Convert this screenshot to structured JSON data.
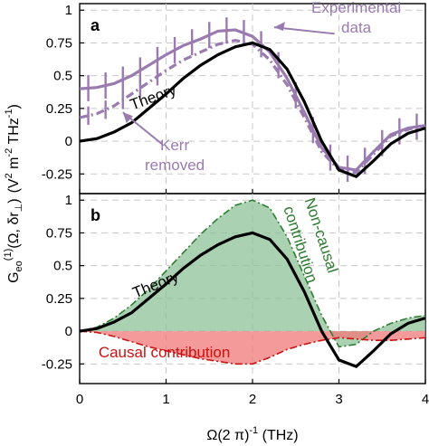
{
  "colors": {
    "experimental": "#9a7bb0",
    "theory": "#000000",
    "noncausal_line": "#2e7d32",
    "noncausal_fill": "#8fc19a",
    "causal_line": "#cc1111",
    "causal_fill": "#f07878",
    "grid": "#c8c8c8"
  },
  "chart_data": [
    {
      "panel": "a",
      "type": "line",
      "x_range": [
        0,
        4
      ],
      "ylim": [
        -0.4,
        1.05
      ],
      "yticks": [
        -0.25,
        0,
        0.25,
        0.5,
        0.75,
        1
      ],
      "ytick_labels": [
        "-0.25",
        "0",
        "0.25",
        "0.5",
        "0.75",
        "1"
      ],
      "series": [
        {
          "name": "Theory",
          "style": "solid-black",
          "x": [
            0,
            0.2,
            0.4,
            0.6,
            0.8,
            1.0,
            1.2,
            1.4,
            1.6,
            1.8,
            2.0,
            2.2,
            2.4,
            2.6,
            2.8,
            3.0,
            3.2,
            3.4,
            3.6,
            3.8,
            4.0
          ],
          "y": [
            0,
            0.02,
            0.07,
            0.14,
            0.25,
            0.36,
            0.48,
            0.58,
            0.66,
            0.72,
            0.75,
            0.7,
            0.55,
            0.3,
            0.0,
            -0.22,
            -0.27,
            -0.15,
            -0.02,
            0.06,
            0.1
          ]
        },
        {
          "name": "Experimental data",
          "style": "solid-purple-errorbars",
          "x": [
            0,
            0.2,
            0.4,
            0.6,
            0.8,
            1.0,
            1.2,
            1.4,
            1.6,
            1.8,
            2.0,
            2.2,
            2.4,
            2.6,
            2.8,
            3.0,
            3.2,
            3.4,
            3.6,
            3.8,
            4.0
          ],
          "y": [
            0.4,
            0.41,
            0.44,
            0.5,
            0.58,
            0.66,
            0.73,
            0.78,
            0.84,
            0.85,
            0.8,
            0.68,
            0.48,
            0.22,
            -0.05,
            -0.2,
            -0.22,
            -0.08,
            0.05,
            0.1,
            0.12
          ],
          "error_bar_x": [
            0.1,
            0.3,
            0.5,
            0.7,
            0.9,
            1.1,
            1.3,
            1.5,
            1.7,
            1.9,
            2.1,
            2.3,
            2.5,
            2.7,
            2.9,
            3.1,
            3.3,
            3.5,
            3.7,
            3.9
          ],
          "error_half_width": 0.1
        },
        {
          "name": "Kerr removed",
          "style": "dash-dot-purple-errorbars",
          "x": [
            0,
            0.2,
            0.4,
            0.6,
            0.8,
            1.0,
            1.2,
            1.4,
            1.6,
            1.8,
            2.0,
            2.2,
            2.4,
            2.6,
            2.8,
            3.0,
            3.2,
            3.4,
            3.6,
            3.8,
            4.0
          ],
          "y": [
            0.18,
            0.21,
            0.27,
            0.36,
            0.45,
            0.54,
            0.62,
            0.68,
            0.74,
            0.77,
            0.74,
            0.62,
            0.43,
            0.18,
            -0.08,
            -0.22,
            -0.24,
            -0.1,
            0.04,
            0.09,
            0.12
          ],
          "error_bar_x": [
            0.1,
            0.3,
            0.5,
            0.7,
            0.9
          ],
          "error_half_width": 0.07
        }
      ],
      "annotations": [
        {
          "text": "Experimental",
          "line": 1,
          "at": [
            3.2,
            0.98
          ]
        },
        {
          "text": "data",
          "line": 2,
          "at": [
            3.2,
            0.84
          ]
        },
        {
          "text": "Kerr",
          "line": 1,
          "at": [
            1.1,
            -0.06
          ]
        },
        {
          "text": "removed",
          "line": 2,
          "at": [
            1.1,
            -0.21
          ]
        },
        {
          "text": "Theory",
          "at": [
            0.85,
            0.31
          ]
        }
      ]
    },
    {
      "panel": "b",
      "type": "area",
      "x_range": [
        0,
        4
      ],
      "ylim": [
        -0.4,
        1.05
      ],
      "yticks": [
        -0.25,
        0,
        0.25,
        0.5,
        0.75,
        1
      ],
      "ytick_labels": [
        "-0.25",
        "0",
        "0.25",
        "0.5",
        "0.75",
        "1"
      ],
      "xticks": [
        0,
        1,
        2,
        3,
        4
      ],
      "xtick_labels": [
        "0",
        "1",
        "2",
        "3",
        "4"
      ],
      "series": [
        {
          "name": "Non-causal contribution",
          "style": "dash-dot-green-filled",
          "x": [
            0,
            0.2,
            0.4,
            0.6,
            0.8,
            1.0,
            1.2,
            1.4,
            1.6,
            1.8,
            2.0,
            2.2,
            2.4,
            2.6,
            2.8,
            3.0,
            3.2,
            3.4,
            3.6,
            3.8,
            4.0
          ],
          "y": [
            0,
            0.03,
            0.1,
            0.2,
            0.32,
            0.46,
            0.6,
            0.74,
            0.86,
            0.96,
            1.0,
            0.94,
            0.72,
            0.42,
            0.12,
            -0.12,
            -0.1,
            0.0,
            0.06,
            0.1,
            0.12
          ]
        },
        {
          "name": "Causal contribution",
          "style": "dash-dot-red-filled",
          "x": [
            0,
            0.2,
            0.4,
            0.6,
            0.8,
            1.0,
            1.2,
            1.4,
            1.6,
            1.8,
            2.0,
            2.2,
            2.4,
            2.6,
            2.8,
            3.0,
            3.2,
            3.4,
            3.6,
            3.8,
            4.0
          ],
          "y": [
            0,
            -0.01,
            -0.04,
            -0.08,
            -0.12,
            -0.15,
            -0.18,
            -0.21,
            -0.23,
            -0.25,
            -0.25,
            -0.2,
            -0.14,
            -0.1,
            -0.07,
            -0.05,
            -0.06,
            -0.07,
            -0.07,
            -0.06,
            -0.05
          ]
        },
        {
          "name": "Theory",
          "style": "solid-black",
          "x": [
            0,
            0.2,
            0.4,
            0.6,
            0.8,
            1.0,
            1.2,
            1.4,
            1.6,
            1.8,
            2.0,
            2.2,
            2.4,
            2.6,
            2.8,
            3.0,
            3.2,
            3.4,
            3.6,
            3.8,
            4.0
          ],
          "y": [
            0,
            0.02,
            0.07,
            0.14,
            0.25,
            0.36,
            0.48,
            0.58,
            0.66,
            0.72,
            0.75,
            0.7,
            0.55,
            0.3,
            0.0,
            -0.22,
            -0.27,
            -0.15,
            -0.02,
            0.06,
            0.1
          ]
        }
      ],
      "annotations": [
        {
          "text": "Theory",
          "at": [
            0.85,
            0.33
          ]
        },
        {
          "text": "Non-causal",
          "line": 1,
          "at": [
            2.75,
            0.75
          ]
        },
        {
          "text": "contribution",
          "line": 2,
          "at": [
            2.47,
            0.68
          ]
        },
        {
          "text": "Causal contribution",
          "at": [
            0.95,
            -0.17
          ]
        }
      ]
    }
  ],
  "text": {
    "panel_a_label": "a",
    "panel_b_label": "b",
    "ylabel": "G_eo^(1)(Ω, δr_⊥) (V^2 m^-2 THz^-1)",
    "xlabel": "Ω(2 π)^-1 (THz)"
  },
  "labels": {
    "exp_line1": "Experimental",
    "exp_line2": "data",
    "kerr_line1": "Kerr",
    "kerr_line2": "removed",
    "theory": "Theory",
    "noncausal_line1": "Non-causal",
    "noncausal_line2": "contribution",
    "causal": "Causal contribution",
    "ylabel_main": "G",
    "ylabel_sub": "eo",
    "ylabel_sup": "(1)",
    "ylabel_args": "(Ω, δr",
    "ylabel_perp": "⊥",
    "ylabel_close": ")",
    "ylabel_units": "(V",
    "ylabel_units_2": "2",
    "ylabel_units_m": " m",
    "ylabel_units_m2": "-2",
    "ylabel_units_thz": " THz",
    "ylabel_units_thz2": "-1",
    "ylabel_units_end": ")",
    "xlabel_main": "Ω(2 π)",
    "xlabel_sup": "-1",
    "xlabel_unit": " (THz)"
  }
}
